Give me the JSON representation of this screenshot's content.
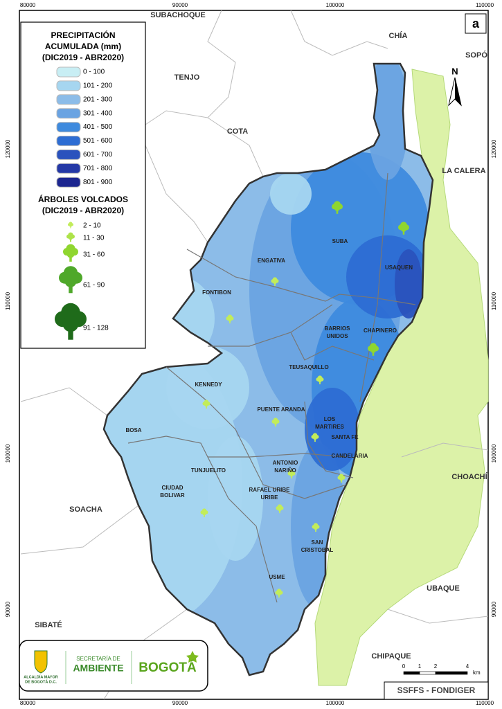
{
  "panel_label": "a",
  "frame": {
    "x_labels": [
      80000,
      90000,
      100000,
      110000
    ],
    "y_labels": [
      120000,
      110000,
      100000,
      90000
    ]
  },
  "legend": {
    "title": [
      "PRECIPITACIÓN",
      "ACUMULADA (mm)",
      "(DIC2019 - ABR2020)"
    ],
    "classes": [
      {
        "label": "0 - 100",
        "color": "#c8eef4"
      },
      {
        "label": "101 - 200",
        "color": "#a6d6f0"
      },
      {
        "label": "201 - 300",
        "color": "#8cbce8"
      },
      {
        "label": "301 - 400",
        "color": "#6aa3e2"
      },
      {
        "label": "401 - 500",
        "color": "#3e8ade"
      },
      {
        "label": "501 - 600",
        "color": "#2d6dd3"
      },
      {
        "label": "601 - 700",
        "color": "#2a52bd"
      },
      {
        "label": "701 - 800",
        "color": "#2438a6"
      },
      {
        "label": "801 - 900",
        "color": "#1c2690"
      }
    ],
    "trees_title": [
      "ÁRBOLES VOLCADOS",
      "(DIC2019 - ABR2020)"
    ],
    "tree_classes": [
      {
        "label": "2 - 10",
        "color": "#c2ec5a"
      },
      {
        "label": "11 - 30",
        "color": "#aee34a"
      },
      {
        "label": "31 - 60",
        "color": "#8fd62f"
      },
      {
        "label": "61 - 90",
        "color": "#4fa82a"
      },
      {
        "label": "91 - 128",
        "color": "#1f6b1a"
      }
    ]
  },
  "places": [
    "SUBACHOQUE",
    "CHÍA",
    "SOPÓ",
    "TENJO",
    "COTA",
    "LA CALERA",
    "CHOACHÍ",
    "SOACHA",
    "UBAQUE",
    "SIBATÉ",
    "CHIPAQUE"
  ],
  "localities": [
    [
      "SUBA"
    ],
    [
      "USAQUEN"
    ],
    [
      "ENGATIVA"
    ],
    [
      "FONTIBON"
    ],
    [
      "BARRIOS",
      "UNIDOS"
    ],
    [
      "CHAPINERO"
    ],
    [
      "TEUSAQUILLO"
    ],
    [
      "KENNEDY"
    ],
    [
      "PUENTE ARANDA"
    ],
    [
      "LOS",
      "MARTIRES"
    ],
    [
      "SANTA FE"
    ],
    [
      "CANDELARIA"
    ],
    [
      "BOSA"
    ],
    [
      "ANTONIO",
      "NARIÑO"
    ],
    [
      "TUNJUELITO"
    ],
    [
      "CIUDAD",
      "BOLIVAR"
    ],
    [
      "RAFAEL URIBE",
      "URIBE"
    ],
    [
      "SAN",
      "CRISTOBAL"
    ],
    [
      "USME"
    ]
  ],
  "north": "N",
  "scale": {
    "labels": [
      0,
      1,
      2,
      4
    ],
    "unit": "km"
  },
  "logos": {
    "alcaldia": [
      "ALCALDÍA MAYOR",
      "DE BOGOTÁ D.C."
    ],
    "secretaria": [
      "SECRETARÍA DE",
      "AMBIENTE"
    ],
    "bogota": "BOGOTÁ"
  },
  "footer": "SSFFS - FONDIGER"
}
